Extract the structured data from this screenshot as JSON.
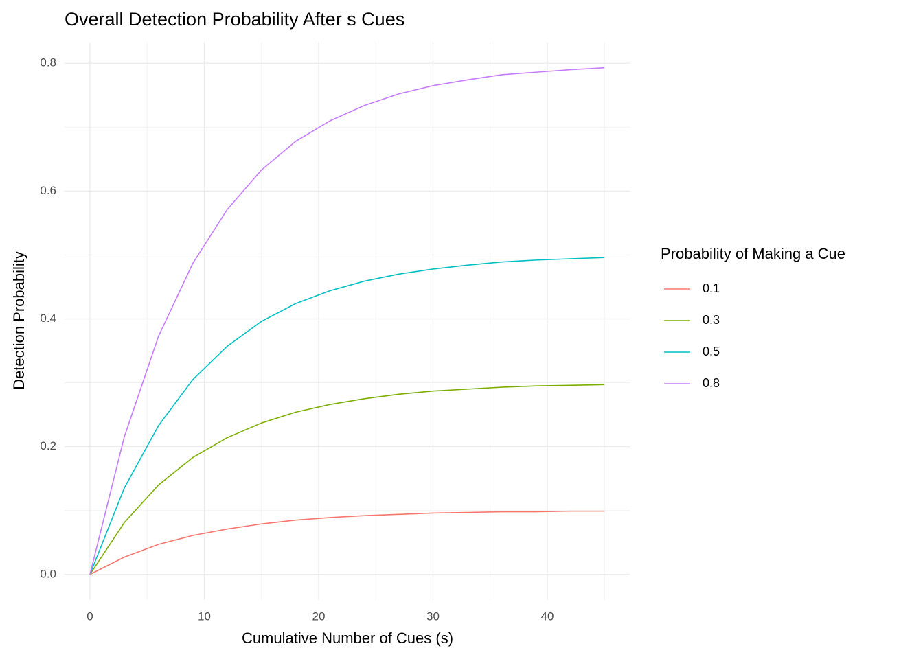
{
  "chart_data": {
    "type": "line",
    "title": "Overall Detection Probability After s Cues",
    "x_label": "Cumulative Number of Cues (s)",
    "y_label": "Detection Probability",
    "legend_title": "Probability of Making a Cue",
    "legend_position": "right",
    "grid": true,
    "x": [
      0,
      3,
      6,
      9,
      12,
      15,
      18,
      21,
      24,
      27,
      30,
      33,
      36,
      39,
      42,
      45
    ],
    "series": [
      {
        "name": "0.1",
        "color": "#F8766D",
        "values": [
          0,
          0.027,
          0.047,
          0.061,
          0.071,
          0.079,
          0.085,
          0.089,
          0.092,
          0.094,
          0.096,
          0.097,
          0.098,
          0.098,
          0.099,
          0.099
        ]
      },
      {
        "name": "0.3",
        "color": "#7CAE00",
        "values": [
          0,
          0.081,
          0.14,
          0.183,
          0.214,
          0.237,
          0.254,
          0.266,
          0.275,
          0.282,
          0.287,
          0.29,
          0.293,
          0.295,
          0.296,
          0.297
        ]
      },
      {
        "name": "0.5",
        "color": "#00BFC4",
        "values": [
          0,
          0.135,
          0.233,
          0.305,
          0.357,
          0.396,
          0.424,
          0.444,
          0.459,
          0.47,
          0.478,
          0.484,
          0.489,
          0.492,
          0.494,
          0.496
        ]
      },
      {
        "name": "0.8",
        "color": "#C77CFF",
        "values": [
          0,
          0.215,
          0.373,
          0.487,
          0.571,
          0.633,
          0.678,
          0.71,
          0.734,
          0.752,
          0.765,
          0.774,
          0.782,
          0.786,
          0.79,
          0.793
        ]
      }
    ],
    "xlim": [
      -2.25,
      47.25
    ],
    "xticks": [
      0,
      10,
      20,
      30,
      40
    ],
    "ylim": [
      -0.04,
      0.833
    ],
    "yticks": [
      {
        "value": 0,
        "label": "0.0"
      },
      0.2,
      0.4,
      0.6,
      0.8
    ]
  }
}
